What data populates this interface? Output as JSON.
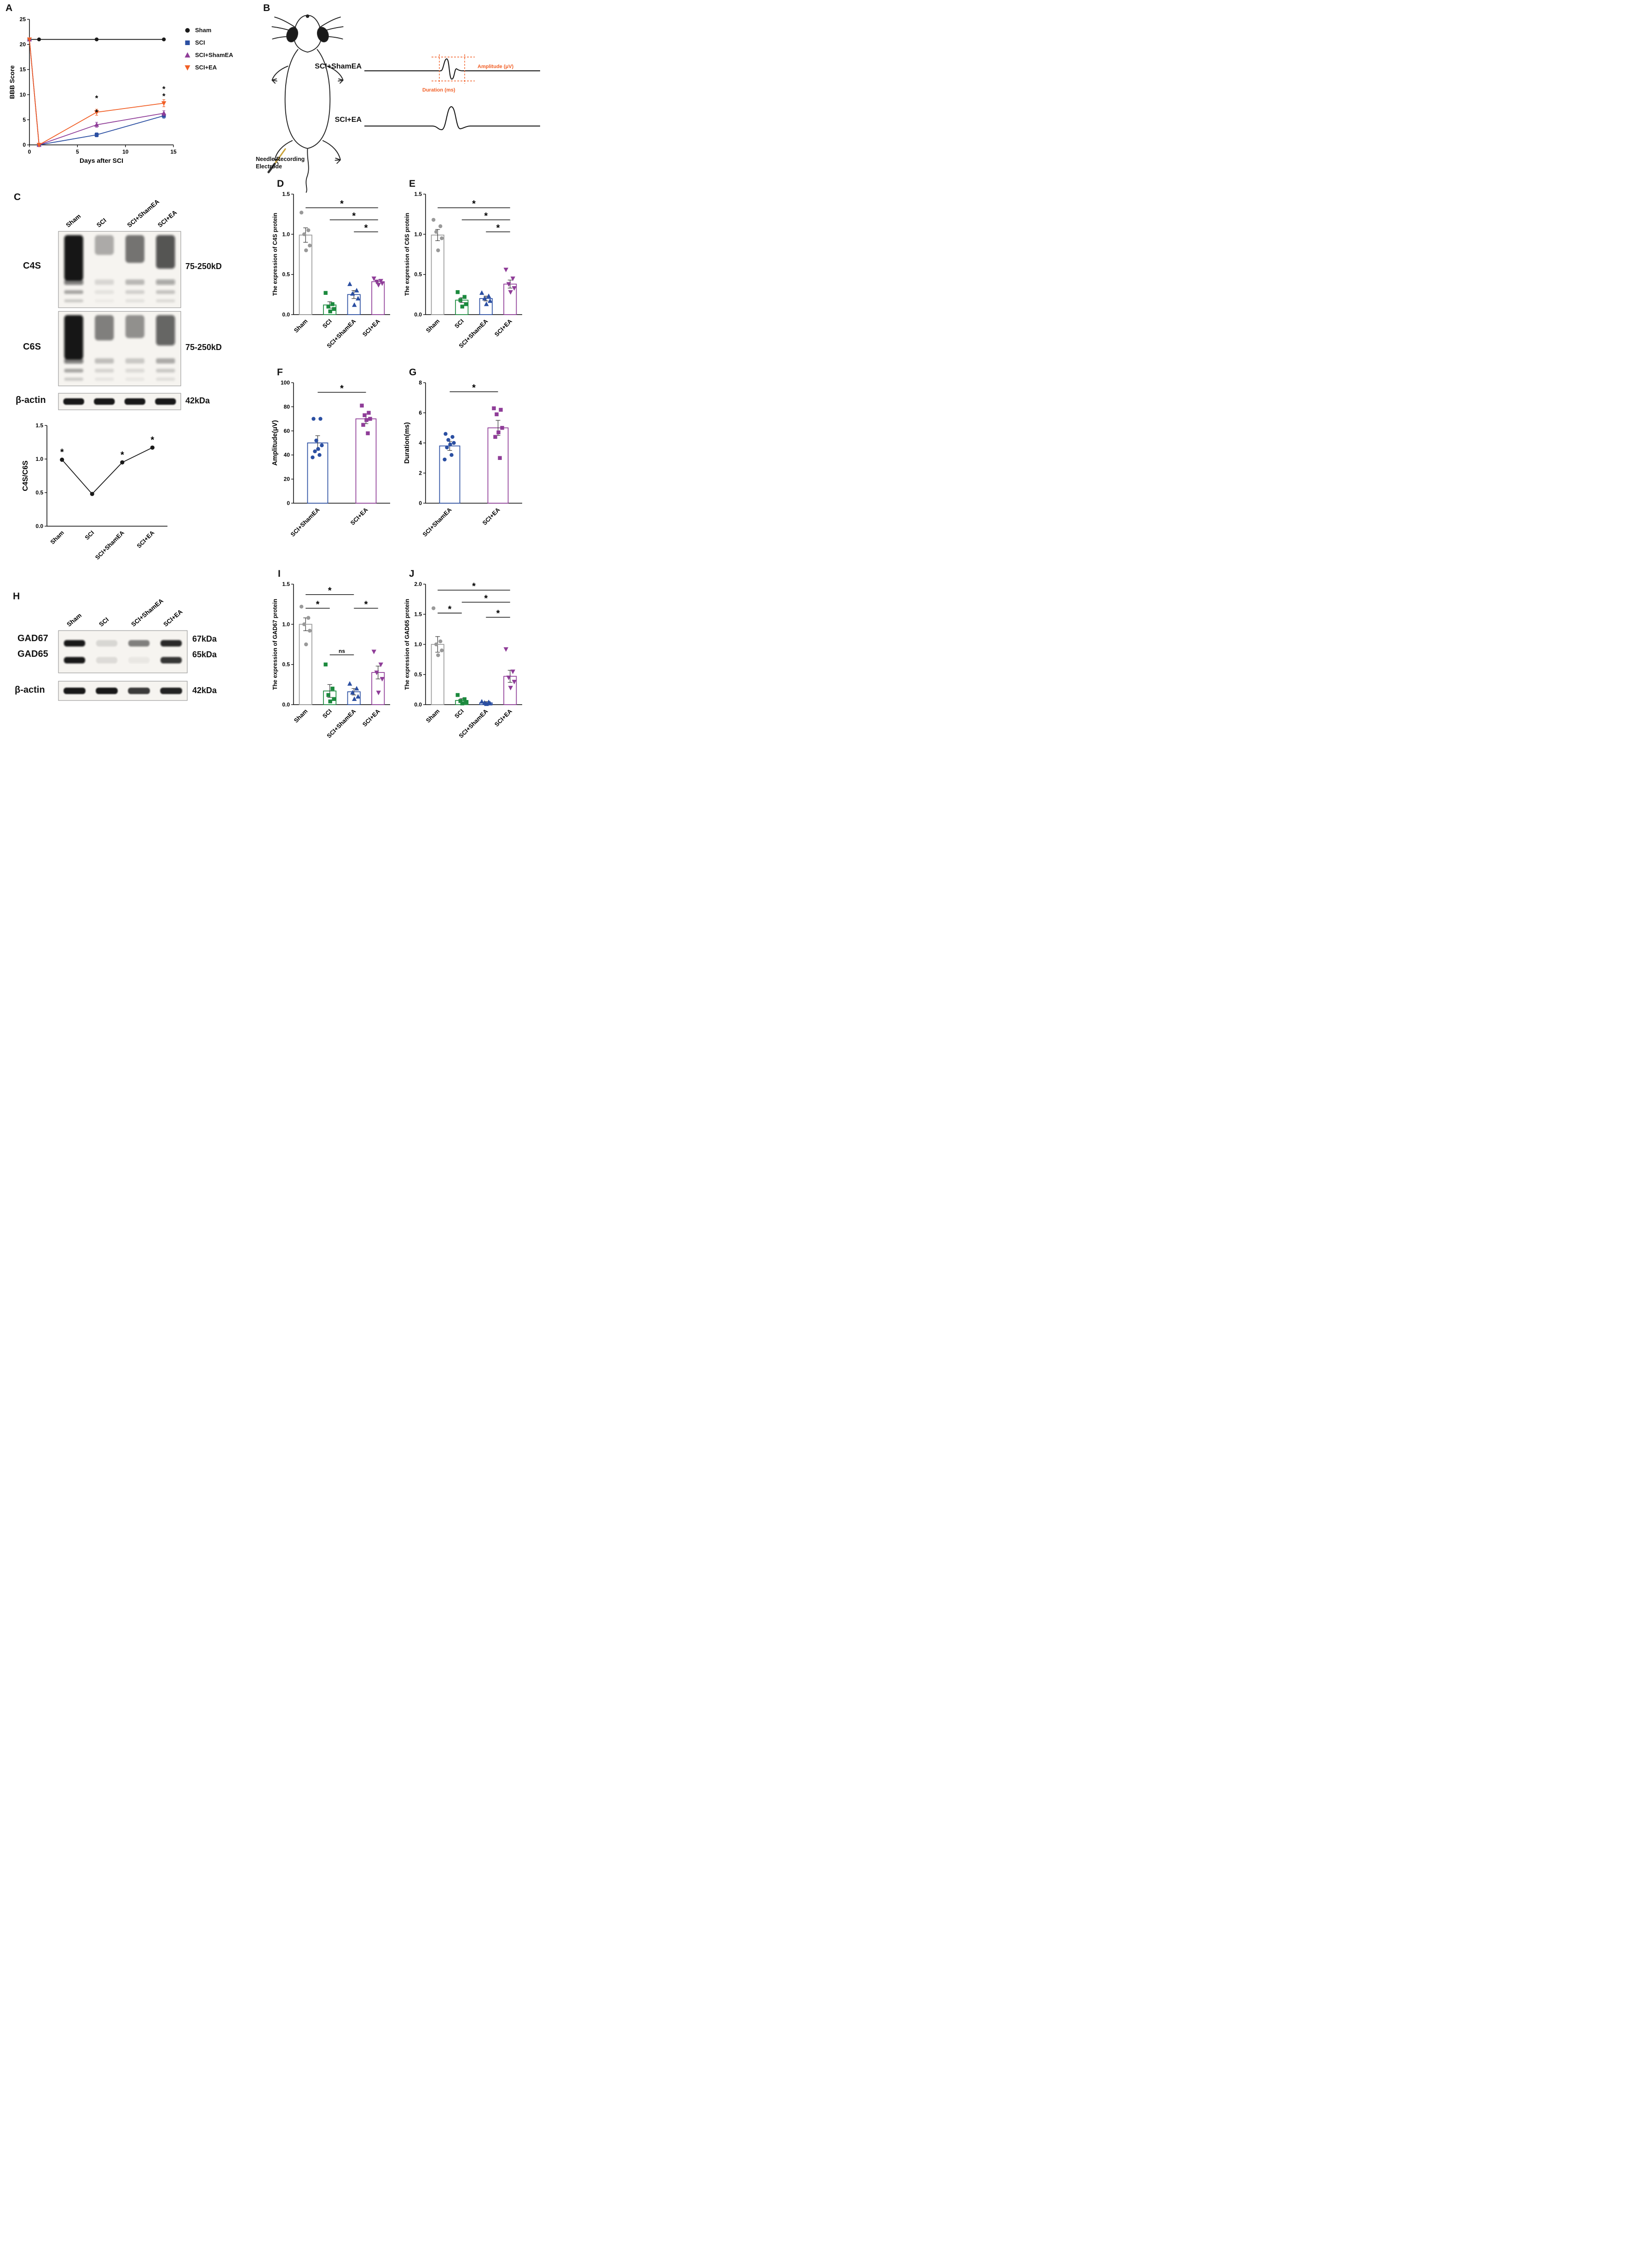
{
  "panels": {
    "a": {
      "label": "A"
    },
    "b": {
      "label": "B",
      "group1": "SCI+ShamEA",
      "group2": "SCI+EA",
      "amplitude_label": "Amplitude (μV)",
      "duration_label": "Duration (ms)",
      "needle_label_1": "Needle Recording",
      "needle_label_2": "Electrode"
    },
    "c": {
      "label": "C",
      "lane_labels": [
        "Sham",
        "SCI",
        "SCI+ShamEA",
        "SCI+EA"
      ],
      "blots": [
        {
          "name": "C4S",
          "size_label": "75-250kD",
          "lane_intensity": [
            0.97,
            0.22,
            0.45,
            0.62
          ]
        },
        {
          "name": "C6S",
          "size_label": "75-250kD",
          "lane_intensity": [
            0.97,
            0.4,
            0.33,
            0.55
          ]
        }
      ],
      "actin": {
        "name": "β-actin",
        "size_label": "42kDa",
        "lane_intensity": [
          0.95,
          0.92,
          0.93,
          0.94
        ]
      }
    },
    "d": {
      "label": "D"
    },
    "e": {
      "label": "E"
    },
    "f": {
      "label": "F"
    },
    "g": {
      "label": "G"
    },
    "h": {
      "label": "H",
      "lane_labels": [
        "Sham",
        "SCI",
        "SCI+ShamEA",
        "SCI+EA"
      ],
      "rows": [
        {
          "name": "GAD67",
          "size_label": "67kDa",
          "lane_intensity": [
            0.95,
            0.12,
            0.5,
            0.88
          ]
        },
        {
          "name": "GAD65",
          "size_label": "65kDa",
          "lane_intensity": [
            0.95,
            0.1,
            0.05,
            0.82
          ]
        }
      ],
      "actin": {
        "name": "β-actin",
        "size_label": "42kDa",
        "lane_intensity": [
          0.95,
          0.97,
          0.75,
          0.85
        ]
      }
    },
    "i": {
      "label": "I"
    },
    "j": {
      "label": "J"
    }
  },
  "chart_data": [
    {
      "id": "A",
      "type": "line",
      "xlabel": "Days after SCI",
      "ylabel": "BBB Score",
      "xlim": [
        0,
        15
      ],
      "ylim": [
        0,
        25
      ],
      "xticks": [
        0,
        5,
        10,
        15
      ],
      "yticks": [
        0,
        5,
        10,
        15,
        20,
        25
      ],
      "x": [
        0,
        1,
        7,
        14
      ],
      "series": [
        {
          "name": "Sham",
          "marker": "circle",
          "color": "#1a1a1a",
          "values": [
            21,
            21,
            21,
            21
          ],
          "errors": [
            0,
            0,
            0,
            0
          ]
        },
        {
          "name": "SCI",
          "marker": "square",
          "color": "#2b4fa2",
          "values": [
            21,
            0,
            2,
            5.8
          ],
          "errors": [
            0,
            0,
            0.4,
            0.5
          ]
        },
        {
          "name": "SCI+ShamEA",
          "marker": "triangle-up",
          "color": "#8f3d98",
          "values": [
            21,
            0,
            4,
            6.3
          ],
          "errors": [
            0,
            0,
            0.5,
            0.5
          ]
        },
        {
          "name": "SCI+EA",
          "marker": "triangle-down",
          "color": "#f15f26",
          "values": [
            21,
            0,
            6.5,
            8.3
          ],
          "errors": [
            0,
            0,
            0.6,
            0.7
          ]
        }
      ],
      "annotations": [
        {
          "x": 7,
          "y": 8.8,
          "text": "*"
        },
        {
          "x": 7,
          "y": 6.0,
          "text": "*"
        },
        {
          "x": 14,
          "y": 10.6,
          "text": "*"
        },
        {
          "x": 14,
          "y": 9.2,
          "text": "*"
        }
      ],
      "legend_position": "right"
    },
    {
      "id": "C_ratio",
      "type": "line-cat",
      "ylabel": "C4S/C6S",
      "ylabel_size": 16,
      "categories": [
        "Sham",
        "SCI",
        "SCI+ShamEA",
        "SCI+EA"
      ],
      "values": [
        0.99,
        0.48,
        0.95,
        1.17
      ],
      "ylim": [
        0,
        1.5
      ],
      "yticks": [
        0,
        0.5,
        1.0,
        1.5
      ],
      "ytick_labels": [
        "0.0",
        "0.5",
        "1.0",
        "1.5"
      ],
      "asterisk_indices": [
        0,
        2,
        3
      ]
    },
    {
      "id": "D",
      "type": "bar",
      "ylabel": "The expression of C4S protein",
      "categories": [
        "Sham",
        "SCI",
        "SCI+ShamEA",
        "SCI+EA"
      ],
      "values": [
        0.99,
        0.12,
        0.25,
        0.41
      ],
      "errors": [
        0.09,
        0.04,
        0.05,
        0.02
      ],
      "points": [
        [
          1.27,
          1.05,
          1.0,
          0.86,
          0.8
        ],
        [
          0.27,
          0.13,
          0.1,
          0.07,
          0.04
        ],
        [
          0.38,
          0.3,
          0.26,
          0.2,
          0.12
        ],
        [
          0.45,
          0.42,
          0.41,
          0.39,
          0.37
        ]
      ],
      "markers": [
        "circle",
        "square",
        "triangle-up",
        "triangle-down"
      ],
      "colors": [
        "#999999",
        "#1c8a3e",
        "#2b4fa2",
        "#8f3d98"
      ],
      "ylim": [
        0,
        1.5
      ],
      "yticks": [
        0,
        0.5,
        1.0,
        1.5
      ],
      "ytick_labels": [
        "0.0",
        "0.5",
        "1.0",
        "1.5"
      ],
      "significance": [
        {
          "from": 0,
          "to": 3,
          "label": "*",
          "y": 1.33
        },
        {
          "from": 1,
          "to": 3,
          "label": "*",
          "y": 1.18
        },
        {
          "from": 2,
          "to": 3,
          "label": "*",
          "y": 1.03
        }
      ]
    },
    {
      "id": "E",
      "type": "bar",
      "ylabel": "The expression of C6S protein",
      "categories": [
        "Sham",
        "SCI",
        "SCI+ShamEA",
        "SCI+EA"
      ],
      "values": [
        0.99,
        0.18,
        0.2,
        0.38
      ],
      "errors": [
        0.07,
        0.03,
        0.03,
        0.05
      ],
      "points": [
        [
          1.18,
          1.1,
          1.03,
          0.95,
          0.8
        ],
        [
          0.28,
          0.22,
          0.18,
          0.13,
          0.1
        ],
        [
          0.27,
          0.23,
          0.2,
          0.17,
          0.13
        ],
        [
          0.56,
          0.45,
          0.38,
          0.33,
          0.28
        ]
      ],
      "markers": [
        "circle",
        "square",
        "triangle-up",
        "triangle-down"
      ],
      "colors": [
        "#999999",
        "#1c8a3e",
        "#2b4fa2",
        "#8f3d98"
      ],
      "ylim": [
        0,
        1.5
      ],
      "yticks": [
        0,
        0.5,
        1.0,
        1.5
      ],
      "ytick_labels": [
        "0.0",
        "0.5",
        "1.0",
        "1.5"
      ],
      "significance": [
        {
          "from": 0,
          "to": 3,
          "label": "*",
          "y": 1.33
        },
        {
          "from": 1,
          "to": 3,
          "label": "*",
          "y": 1.18
        },
        {
          "from": 2,
          "to": 3,
          "label": "*",
          "y": 1.03
        }
      ]
    },
    {
      "id": "F",
      "type": "bar",
      "ylabel": "Amplitude(μV)",
      "ylabel_size": 14.5,
      "categories": [
        "SCI+ShamEA",
        "SCI+EA"
      ],
      "values": [
        50,
        70
      ],
      "errors": [
        6,
        4
      ],
      "points": [
        [
          70,
          70,
          52,
          48,
          45,
          43,
          40,
          38
        ],
        [
          81,
          75,
          73,
          70,
          69,
          65,
          58
        ]
      ],
      "markers": [
        "circle",
        "square"
      ],
      "colors": [
        "#2b4fa2",
        "#8f3d98"
      ],
      "ylim": [
        0,
        100
      ],
      "yticks": [
        0,
        20,
        40,
        60,
        80,
        100
      ],
      "ytick_labels": [
        "0",
        "20",
        "40",
        "60",
        "80",
        "100"
      ],
      "significance": [
        {
          "from": 0,
          "to": 1,
          "label": "*",
          "y": 92
        }
      ]
    },
    {
      "id": "G",
      "type": "bar",
      "ylabel": "Duration(ms)",
      "ylabel_size": 14.5,
      "categories": [
        "SCI+ShamEA",
        "SCI+EA"
      ],
      "values": [
        3.8,
        5.0
      ],
      "errors": [
        0.3,
        0.5
      ],
      "points": [
        [
          4.6,
          4.4,
          4.2,
          4.0,
          3.9,
          3.7,
          3.2,
          2.9
        ],
        [
          6.3,
          6.2,
          5.9,
          5.0,
          4.7,
          4.4,
          3.0
        ]
      ],
      "markers": [
        "circle",
        "square"
      ],
      "colors": [
        "#2b4fa2",
        "#8f3d98"
      ],
      "ylim": [
        0,
        8
      ],
      "yticks": [
        0,
        2,
        4,
        6,
        8
      ],
      "ytick_labels": [
        "0",
        "2",
        "4",
        "6",
        "8"
      ],
      "significance": [
        {
          "from": 0,
          "to": 1,
          "label": "*",
          "y": 7.4
        }
      ]
    },
    {
      "id": "I",
      "type": "bar",
      "ylabel": "The expression of GAD67 protein",
      "categories": [
        "Sham",
        "SCI",
        "SCI+ShamEA",
        "SCI+EA"
      ],
      "values": [
        1.0,
        0.17,
        0.16,
        0.4
      ],
      "errors": [
        0.08,
        0.08,
        0.04,
        0.08
      ],
      "points": [
        [
          1.22,
          1.08,
          1.0,
          0.92,
          0.75
        ],
        [
          0.5,
          0.2,
          0.12,
          0.07,
          0.04
        ],
        [
          0.26,
          0.2,
          0.15,
          0.1,
          0.07
        ],
        [
          0.66,
          0.5,
          0.4,
          0.32,
          0.15
        ]
      ],
      "markers": [
        "circle",
        "square",
        "triangle-up",
        "triangle-down"
      ],
      "colors": [
        "#999999",
        "#1c8a3e",
        "#2b4fa2",
        "#8f3d98"
      ],
      "ylim": [
        0,
        1.5
      ],
      "yticks": [
        0,
        0.5,
        1.0,
        1.5
      ],
      "ytick_labels": [
        "0.0",
        "0.5",
        "1.0",
        "1.5"
      ],
      "significance": [
        {
          "from": 0,
          "to": 2,
          "label": "*",
          "y": 1.37
        },
        {
          "from": 0,
          "to": 1,
          "label": "*",
          "y": 1.2
        },
        {
          "from": 1,
          "to": 2,
          "label": "ns",
          "y": 0.62
        },
        {
          "from": 2,
          "to": 3,
          "label": "*",
          "y": 1.2
        }
      ]
    },
    {
      "id": "J",
      "type": "bar",
      "ylabel": "The expression of GAD65 protein",
      "categories": [
        "Sham",
        "SCI",
        "SCI+ShamEA",
        "SCI+EA"
      ],
      "values": [
        1.0,
        0.07,
        0.03,
        0.47
      ],
      "errors": [
        0.13,
        0.03,
        0.02,
        0.1
      ],
      "points": [
        [
          1.6,
          1.05,
          1.0,
          0.9,
          0.82
        ],
        [
          0.16,
          0.09,
          0.06,
          0.04,
          0.02
        ],
        [
          0.05,
          0.04,
          0.03,
          0.02,
          0.01
        ],
        [
          0.92,
          0.55,
          0.45,
          0.38,
          0.28
        ]
      ],
      "markers": [
        "circle",
        "square",
        "triangle-up",
        "triangle-down"
      ],
      "colors": [
        "#999999",
        "#1c8a3e",
        "#2b4fa2",
        "#8f3d98"
      ],
      "ylim": [
        0,
        2.0
      ],
      "yticks": [
        0,
        0.5,
        1.0,
        1.5,
        2.0
      ],
      "ytick_labels": [
        "0.0",
        "0.5",
        "1.0",
        "1.5",
        "2.0"
      ],
      "significance": [
        {
          "from": 0,
          "to": 3,
          "label": "*",
          "y": 1.9
        },
        {
          "from": 1,
          "to": 3,
          "label": "*",
          "y": 1.7
        },
        {
          "from": 0,
          "to": 1,
          "label": "*",
          "y": 1.52
        },
        {
          "from": 2,
          "to": 3,
          "label": "*",
          "y": 1.45
        }
      ]
    }
  ]
}
